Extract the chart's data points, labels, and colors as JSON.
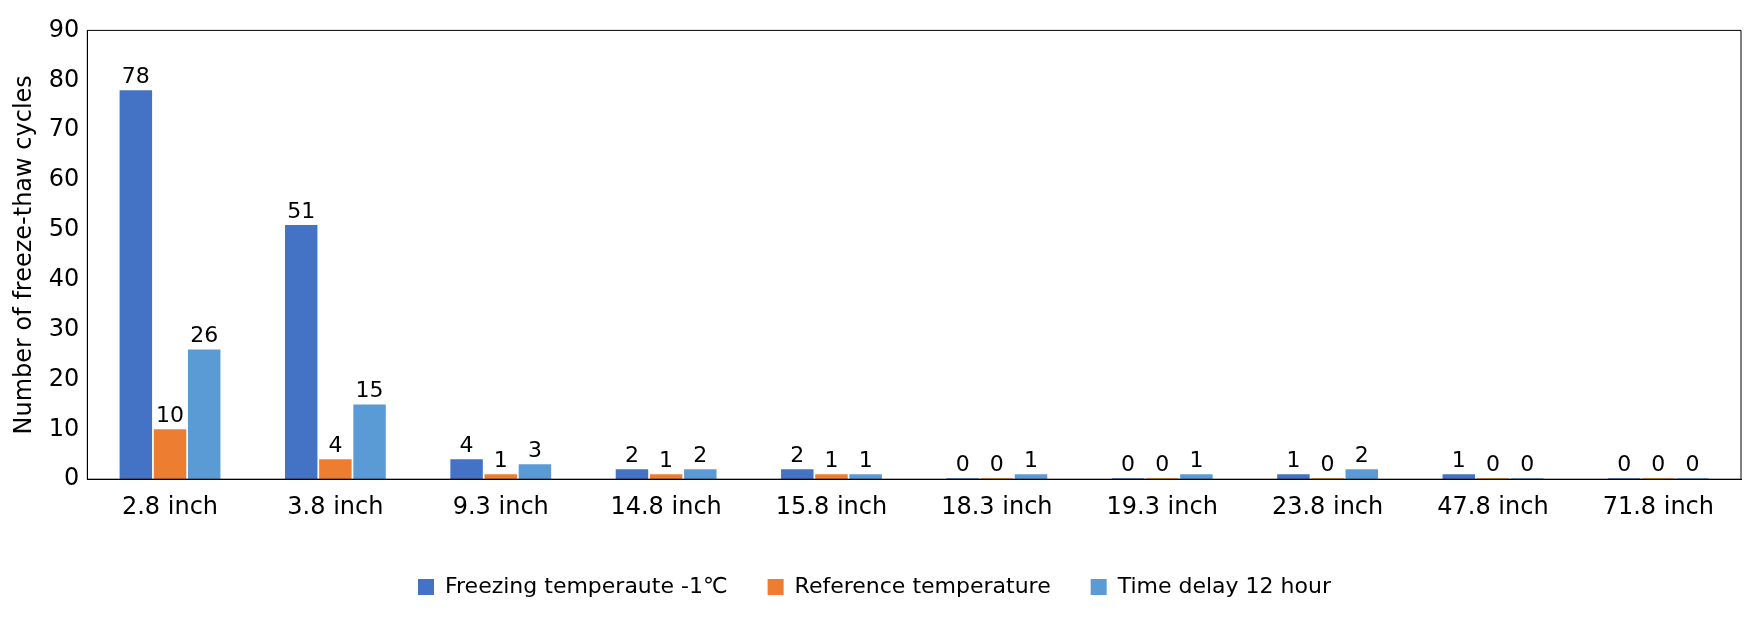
{
  "chart_data": {
    "type": "bar",
    "ylabel": "Number of freeze-thaw cycles",
    "categories": [
      "2.8 inch",
      "3.8 inch",
      "9.3 inch",
      "14.8 inch",
      "15.8 inch",
      "18.3 inch",
      "19.3 inch",
      "23.8 inch",
      "47.8 inch",
      "71.8 inch"
    ],
    "series": [
      {
        "name": "Freezing temperaute -1℃",
        "color": "#4472c4",
        "values": [
          78,
          51,
          4,
          2,
          2,
          0,
          0,
          1,
          1,
          0
        ]
      },
      {
        "name": "Reference temperature",
        "color": "#ed7d31",
        "values": [
          10,
          4,
          1,
          1,
          1,
          0,
          0,
          0,
          0,
          0
        ]
      },
      {
        "name": "Time delay 12 hour",
        "color": "#5b9bd5",
        "values": [
          26,
          15,
          3,
          2,
          1,
          1,
          1,
          2,
          0,
          0
        ]
      }
    ],
    "ylim": [
      0,
      90
    ],
    "yticks": [
      0,
      10,
      20,
      30,
      40,
      50,
      60,
      70,
      80,
      90
    ],
    "grid": false,
    "legend": "bottom",
    "data_labels": true
  }
}
